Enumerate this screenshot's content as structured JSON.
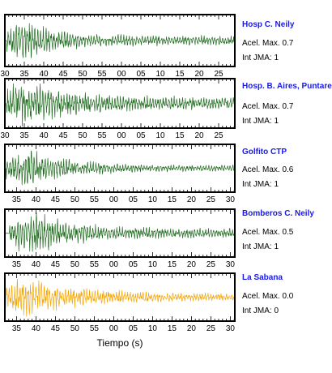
{
  "chart_data": {
    "type": "line",
    "xlabel": "Tiempo (s)",
    "panels": [
      {
        "station": "Hosp C. Neily",
        "accel_text": "Acel. Max. 0.7",
        "jma_text": "Int JMA: 1",
        "color": "#1f6b1f",
        "tick_labels": [
          "30",
          "35",
          "40",
          "45",
          "50",
          "55",
          "00",
          "05",
          "10",
          "15",
          "20",
          "25"
        ],
        "onset_s": 0.5,
        "peak_rel_s": 4,
        "amplitude": 0.9,
        "decay": 0.14,
        "tail": 0.18
      },
      {
        "station": "Hosp. B. Aires, Puntare",
        "accel_text": "Acel. Max. 0.7",
        "jma_text": "Int JMA: 1",
        "color": "#1f6b1f",
        "tick_labels": [
          "30",
          "35",
          "40",
          "45",
          "50",
          "55",
          "00",
          "05",
          "10",
          "15",
          "20",
          "25"
        ],
        "onset_s": 0.3,
        "peak_rel_s": 5,
        "amplitude": 0.95,
        "decay": 0.08,
        "tail": 0.22
      },
      {
        "station": "Golfito CTP",
        "accel_text": "Acel. Max. 0.6",
        "jma_text": "Int JMA: 1",
        "color": "#1f6b1f",
        "tick_labels": [
          "35",
          "40",
          "45",
          "50",
          "55",
          "00",
          "05",
          "10",
          "15",
          "20",
          "25",
          "30"
        ],
        "onset_s": 0.3,
        "peak_rel_s": 6,
        "amplitude": 0.8,
        "decay": 0.1,
        "tail": 0.12
      },
      {
        "station": "Bomberos C. Neily",
        "accel_text": "Acel. Max. 0.5",
        "jma_text": "Int JMA: 1",
        "color": "#1f6b1f",
        "tick_labels": [
          "35",
          "40",
          "45",
          "50",
          "55",
          "00",
          "05",
          "10",
          "15",
          "20",
          "25",
          "30"
        ],
        "onset_s": 1.2,
        "peak_rel_s": 6,
        "amplitude": 0.95,
        "decay": 0.1,
        "tail": 0.18
      },
      {
        "station": "La Sabana",
        "accel_text": "Acel. Max. 0.0",
        "jma_text": "Int JMA: 0",
        "color": "#f5a500",
        "tick_labels": [
          "35",
          "40",
          "45",
          "50",
          "55",
          "00",
          "05",
          "10",
          "15",
          "20",
          "25",
          "30"
        ],
        "onset_s": 0.0,
        "peak_rel_s": 4,
        "amplitude": 0.8,
        "decay": 0.07,
        "tail": 0.14
      }
    ]
  }
}
